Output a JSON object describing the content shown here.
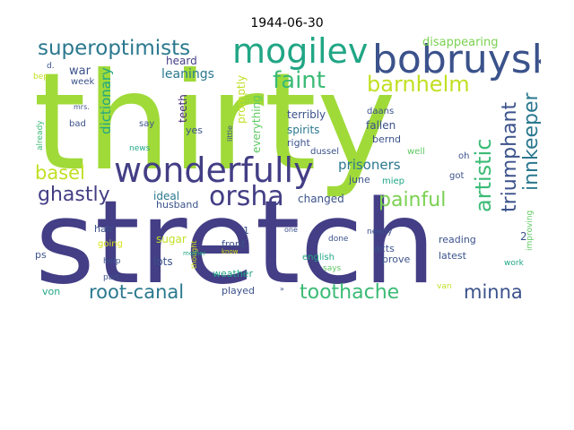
{
  "title": "1944-06-30",
  "palette": {
    "lime": "#a0da39",
    "yellowgreen": "#c2df23",
    "yellow": "#d8e219",
    "green": "#5ec962",
    "emerald": "#3bbb75",
    "teal": "#21a685",
    "tealblue": "#2a788e",
    "slate": "#3b528b",
    "indigo": "#433e85",
    "purple": "#482878",
    "deeppurple": "#440154",
    "lightgreen": "#7ad151"
  },
  "words": [
    {
      "text": "thirty",
      "color": "lime"
    },
    {
      "text": "stretch",
      "color": "indigo"
    },
    {
      "text": "wonderfully",
      "color": "indigo"
    },
    {
      "text": "bobruysk",
      "color": "slate"
    },
    {
      "text": "mogilev",
      "color": "teal"
    },
    {
      "text": "superoptimists",
      "color": "tealblue"
    },
    {
      "text": "orsha",
      "color": "indigo"
    },
    {
      "text": "faint",
      "color": "emerald"
    },
    {
      "text": "barnhelm",
      "color": "yellowgreen"
    },
    {
      "text": "artistic",
      "color": "emerald"
    },
    {
      "text": "triumphant",
      "color": "slate"
    },
    {
      "text": "innkeeper",
      "color": "tealblue"
    },
    {
      "text": "toothache",
      "color": "emerald"
    },
    {
      "text": "painful",
      "color": "lightgreen"
    },
    {
      "text": "ghastly",
      "color": "indigo"
    },
    {
      "text": "basel",
      "color": "yellowgreen"
    },
    {
      "text": "root-canal",
      "color": "tealblue"
    },
    {
      "text": "minna",
      "color": "slate"
    },
    {
      "text": "prisoners",
      "color": "tealblue"
    },
    {
      "text": "leanings",
      "color": "tealblue"
    },
    {
      "text": "dictionary",
      "color": "teal"
    },
    {
      "text": "disappearing",
      "color": "lightgreen"
    },
    {
      "text": "war",
      "color": "slate"
    },
    {
      "text": "heard",
      "color": "indigo"
    },
    {
      "text": "week",
      "color": "slate"
    },
    {
      "text": "teeth",
      "color": "purple"
    },
    {
      "text": "promptly",
      "color": "yellowgreen"
    },
    {
      "text": "everything",
      "color": "green"
    },
    {
      "text": "terribly",
      "color": "slate"
    },
    {
      "text": "fallen",
      "color": "slate"
    },
    {
      "text": "spirits",
      "color": "tealblue"
    },
    {
      "text": "bernd",
      "color": "slate"
    },
    {
      "text": "right",
      "color": "slate"
    },
    {
      "text": "dussel",
      "color": "slate"
    },
    {
      "text": "daans",
      "color": "slate"
    },
    {
      "text": "well",
      "color": "green"
    },
    {
      "text": "oh",
      "color": "slate"
    },
    {
      "text": "got",
      "color": "slate"
    },
    {
      "text": "june",
      "color": "slate"
    },
    {
      "text": "miep",
      "color": "teal"
    },
    {
      "text": "ideal",
      "color": "tealblue"
    },
    {
      "text": "husband",
      "color": "slate"
    },
    {
      "text": "changed",
      "color": "slate"
    },
    {
      "text": "yes",
      "color": "slate"
    },
    {
      "text": "say",
      "color": "slate"
    },
    {
      "text": "bad",
      "color": "slate"
    },
    {
      "text": "mrs.",
      "color": "slate"
    },
    {
      "text": "d.",
      "color": "slate"
    },
    {
      "text": "bep",
      "color": "yellowgreen"
    },
    {
      "text": "already",
      "color": "emerald"
    },
    {
      "text": "news",
      "color": "teal"
    },
    {
      "text": "little",
      "color": "slate"
    },
    {
      "text": "really",
      "color": "slate"
    },
    {
      "text": "improving",
      "color": "green"
    },
    {
      "text": "hair",
      "color": "slate"
    },
    {
      "text": "going",
      "color": "yellow"
    },
    {
      "text": "sugar",
      "color": "yellowgreen"
    },
    {
      "text": "front",
      "color": "slate"
    },
    {
      "text": "lots",
      "color": "slate"
    },
    {
      "text": "thought",
      "color": "yellow"
    },
    {
      "text": "mother",
      "color": "teal"
    },
    {
      "text": "know",
      "color": "yellow"
    },
    {
      "text": "weather",
      "color": "teal"
    },
    {
      "text": "help",
      "color": "slate"
    },
    {
      "text": "part",
      "color": "slate"
    },
    {
      "text": "ps",
      "color": "slate"
    },
    {
      "text": "von",
      "color": "teal"
    },
    {
      "text": "played",
      "color": "slate"
    },
    {
      "text": "1",
      "color": "slate"
    },
    {
      "text": "one",
      "color": "slate"
    },
    {
      "text": "done",
      "color": "slate"
    },
    {
      "text": "nearly",
      "color": "slate"
    },
    {
      "text": "acts",
      "color": "slate"
    },
    {
      "text": "prove",
      "color": "slate"
    },
    {
      "text": "english",
      "color": "teal"
    },
    {
      "text": "says",
      "color": "green"
    },
    {
      "text": "reading",
      "color": "slate"
    },
    {
      "text": "latest",
      "color": "slate"
    },
    {
      "text": "2",
      "color": "slate"
    },
    {
      "text": "work",
      "color": "teal"
    },
    {
      "text": "van",
      "color": "yellowgreen"
    },
    {
      "text": "»",
      "color": "slate"
    }
  ]
}
